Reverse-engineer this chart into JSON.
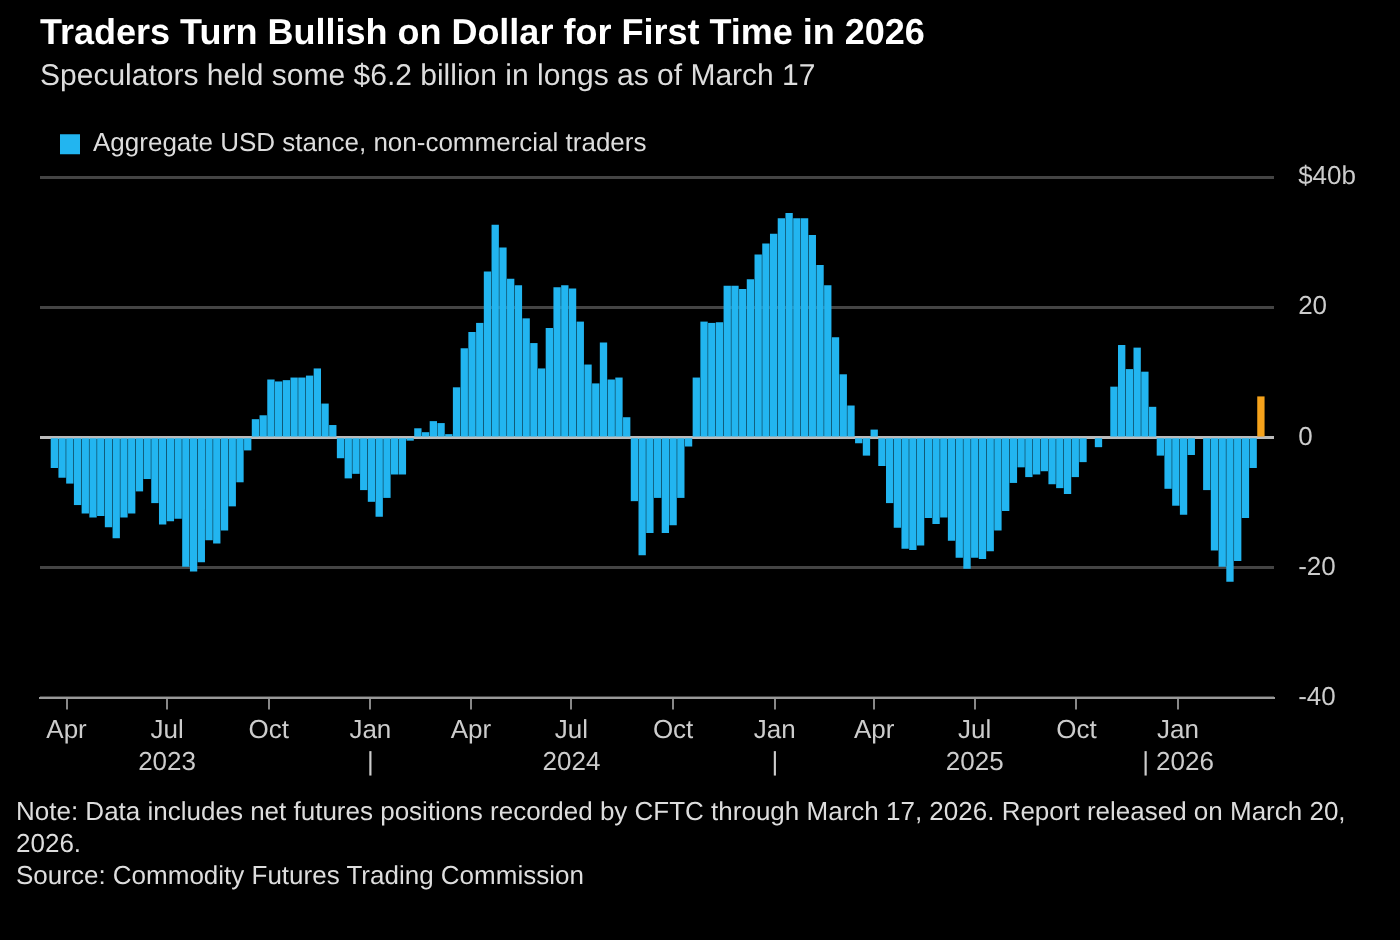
{
  "chart_data": {
    "type": "bar",
    "title": "Traders Turn Bullish on Dollar for First Time in 2026",
    "subtitle": "Speculators held some $6.2 billion in longs as of March 17",
    "x": [
      "2023-03-21",
      "2023-03-28",
      "2023-04-04",
      "2023-04-11",
      "2023-04-18",
      "2023-04-25",
      "2023-05-02",
      "2023-05-09",
      "2023-05-16",
      "2023-05-23",
      "2023-05-30",
      "2023-06-06",
      "2023-06-13",
      "2023-06-20",
      "2023-06-27",
      "2023-07-04",
      "2023-07-11",
      "2023-07-18",
      "2023-07-25",
      "2023-08-01",
      "2023-08-08",
      "2023-08-15",
      "2023-08-22",
      "2023-08-29",
      "2023-09-05",
      "2023-09-12",
      "2023-09-19",
      "2023-09-26",
      "2023-10-03",
      "2023-10-10",
      "2023-10-17",
      "2023-10-24",
      "2023-10-31",
      "2023-11-07",
      "2023-11-14",
      "2023-11-21",
      "2023-11-28",
      "2023-12-05",
      "2023-12-12",
      "2023-12-19",
      "2023-12-26",
      "2024-01-02",
      "2024-01-09",
      "2024-01-16",
      "2024-01-23",
      "2024-01-30",
      "2024-02-06",
      "2024-02-13",
      "2024-02-20",
      "2024-02-27",
      "2024-03-05",
      "2024-03-12",
      "2024-03-19",
      "2024-03-26",
      "2024-04-02",
      "2024-04-09",
      "2024-04-16",
      "2024-04-23",
      "2024-04-30",
      "2024-05-07",
      "2024-05-14",
      "2024-05-21",
      "2024-05-28",
      "2024-06-04",
      "2024-06-11",
      "2024-06-18",
      "2024-06-25",
      "2024-07-02",
      "2024-07-09",
      "2024-07-16",
      "2024-07-23",
      "2024-07-30",
      "2024-08-06",
      "2024-08-13",
      "2024-08-20",
      "2024-08-27",
      "2024-09-03",
      "2024-09-10",
      "2024-09-17",
      "2024-09-24",
      "2024-10-01",
      "2024-10-08",
      "2024-10-15",
      "2024-10-22",
      "2024-10-29",
      "2024-11-05",
      "2024-11-12",
      "2024-11-19",
      "2024-11-26",
      "2024-12-03",
      "2024-12-10",
      "2024-12-17",
      "2024-12-24",
      "2024-12-31",
      "2025-01-07",
      "2025-01-14",
      "2025-01-21",
      "2025-01-28",
      "2025-02-04",
      "2025-02-11",
      "2025-02-18",
      "2025-02-25",
      "2025-03-04",
      "2025-03-11",
      "2025-03-18",
      "2025-03-25",
      "2025-04-01",
      "2025-04-08",
      "2025-04-15",
      "2025-04-22",
      "2025-04-29",
      "2025-05-06",
      "2025-05-13",
      "2025-05-20",
      "2025-05-27",
      "2025-06-03",
      "2025-06-10",
      "2025-06-17",
      "2025-06-24",
      "2025-07-01",
      "2025-07-08",
      "2025-07-15",
      "2025-07-22",
      "2025-07-29",
      "2025-08-05",
      "2025-08-12",
      "2025-08-19",
      "2025-08-26",
      "2025-09-02",
      "2025-09-09",
      "2025-09-16",
      "2025-09-23",
      "2025-09-30",
      "2025-10-07",
      "2025-10-14",
      "2025-10-21",
      "2025-10-28",
      "2025-11-04",
      "2025-11-11",
      "2025-11-18",
      "2025-11-25",
      "2025-12-02",
      "2025-12-09",
      "2025-12-16",
      "2025-12-23",
      "2025-12-30",
      "2026-01-06",
      "2026-01-13",
      "2026-01-20",
      "2026-01-27",
      "2026-02-03",
      "2026-02-10",
      "2026-02-17",
      "2026-02-24",
      "2026-03-03",
      "2026-03-10",
      "2026-03-17"
    ],
    "series": [
      {
        "name": "Aggregate USD stance, non-commercial traders",
        "color": "#22b5f0",
        "values": [
          -4.6,
          -6.1,
          -7.0,
          -10.3,
          -11.6,
          -12.2,
          -12.0,
          -13.7,
          -15.4,
          -12.2,
          -11.6,
          -8.2,
          -6.3,
          -10.0,
          -13.3,
          -12.8,
          -12.4,
          -19.8,
          -20.5,
          -19.1,
          -15.7,
          -16.2,
          -14.2,
          -10.5,
          -6.8,
          -1.9,
          2.7,
          3.3,
          8.8,
          8.5,
          8.7,
          9.1,
          9.1,
          9.4,
          10.5,
          5.1,
          1.8,
          -3.1,
          -6.2,
          -5.5,
          -8.0,
          -9.8,
          -12.1,
          -9.2,
          -5.6,
          -5.6,
          -0.4,
          1.3,
          0.7,
          2.4,
          2.1,
          0.4,
          7.6,
          13.6,
          16.1,
          17.5,
          25.4,
          32.6,
          29.1,
          24.3,
          23.3,
          18.2,
          14.4,
          10.5,
          16.7,
          23.0,
          23.3,
          22.8,
          17.7,
          11.1,
          8.2,
          14.5,
          8.8,
          9.1,
          3.0,
          -9.7,
          -18.0,
          -14.6,
          -9.2,
          -14.6,
          -13.4,
          -9.2,
          -1.3,
          9.1,
          17.7,
          17.5,
          17.6,
          23.2,
          23.2,
          22.7,
          24.2,
          28.0,
          29.7,
          31.2,
          33.6,
          34.4,
          33.6,
          33.6,
          31.0,
          26.4,
          23.3,
          15.3,
          9.6,
          4.8,
          -0.8,
          -2.7,
          1.1,
          -4.3,
          -10.0,
          -13.8,
          -17.0,
          -17.2,
          -16.5,
          -12.3,
          -13.2,
          -12.2,
          -15.8,
          -18.4,
          -20.1,
          -18.4,
          -18.6,
          -17.4,
          -14.2,
          -11.2,
          -6.9,
          -4.5,
          -6.0,
          -5.6,
          -5.1,
          -7.1,
          -7.7,
          -8.6,
          -6.0,
          -3.7,
          null,
          -1.4,
          null,
          7.7,
          14.1,
          10.4,
          13.7,
          10.0,
          4.6,
          -2.7,
          -7.8,
          -10.4,
          -11.8,
          -2.6,
          null,
          -8.0,
          -17.3,
          -19.8,
          -22.1,
          -18.9,
          -12.3,
          -4.6,
          null
        ]
      },
      {
        "color": "#f5a21b",
        "values": [
          null,
          null,
          null,
          null,
          null,
          null,
          null,
          null,
          null,
          null,
          null,
          null,
          null,
          null,
          null,
          null,
          null,
          null,
          null,
          null,
          null,
          null,
          null,
          null,
          null,
          null,
          null,
          null,
          null,
          null,
          null,
          null,
          null,
          null,
          null,
          null,
          null,
          null,
          null,
          null,
          null,
          null,
          null,
          null,
          null,
          null,
          null,
          null,
          null,
          null,
          null,
          null,
          null,
          null,
          null,
          null,
          null,
          null,
          null,
          null,
          null,
          null,
          null,
          null,
          null,
          null,
          null,
          null,
          null,
          null,
          null,
          null,
          null,
          null,
          null,
          null,
          null,
          null,
          null,
          null,
          null,
          null,
          null,
          null,
          null,
          null,
          null,
          null,
          null,
          null,
          null,
          null,
          null,
          null,
          null,
          null,
          null,
          null,
          null,
          null,
          null,
          null,
          null,
          null,
          null,
          null,
          null,
          null,
          null,
          null,
          null,
          null,
          null,
          null,
          null,
          null,
          null,
          null,
          null,
          null,
          null,
          null,
          null,
          null,
          null,
          null,
          null,
          null,
          null,
          null,
          null,
          null,
          null,
          null,
          null,
          null,
          null,
          null,
          null,
          null,
          null,
          null,
          null,
          null,
          null,
          null,
          null,
          null,
          null,
          null,
          null,
          null,
          null,
          null,
          null,
          null,
          6.2
        ]
      }
    ],
    "xlim": [
      "2023-03-08",
      "2026-03-29"
    ],
    "xticks": [
      {
        "value": "2023-04-01",
        "label": "Apr"
      },
      {
        "value": "2023-07-01",
        "label": "Jul\n2023"
      },
      {
        "value": "2023-10-01",
        "label": "Oct"
      },
      {
        "value": "2024-01-01",
        "label": "Jan\n|"
      },
      {
        "value": "2024-04-01",
        "label": "Apr"
      },
      {
        "value": "2024-07-01",
        "label": "Jul\n2024"
      },
      {
        "value": "2024-10-01",
        "label": "Oct"
      },
      {
        "value": "2025-01-01",
        "label": "Jan\n|"
      },
      {
        "value": "2025-04-01",
        "label": "Apr"
      },
      {
        "value": "2025-07-01",
        "label": "Jul\n2025"
      },
      {
        "value": "2025-10-01",
        "label": "Oct"
      },
      {
        "value": "2026-01-01",
        "label": "Jan\n| 2026"
      }
    ],
    "ylim": [
      -40,
      40
    ],
    "yticks": [
      -40,
      -20,
      0,
      20,
      {
        "value": 40,
        "label": "$40b"
      }
    ],
    "grid": "y",
    "legend": "top left",
    "annotations": [
      "Note: Data includes net futures positions recorded by CFTC through March 17, 2026. Report released on March 20, 2026.",
      "Source: Commodity Futures Trading Commission"
    ]
  }
}
